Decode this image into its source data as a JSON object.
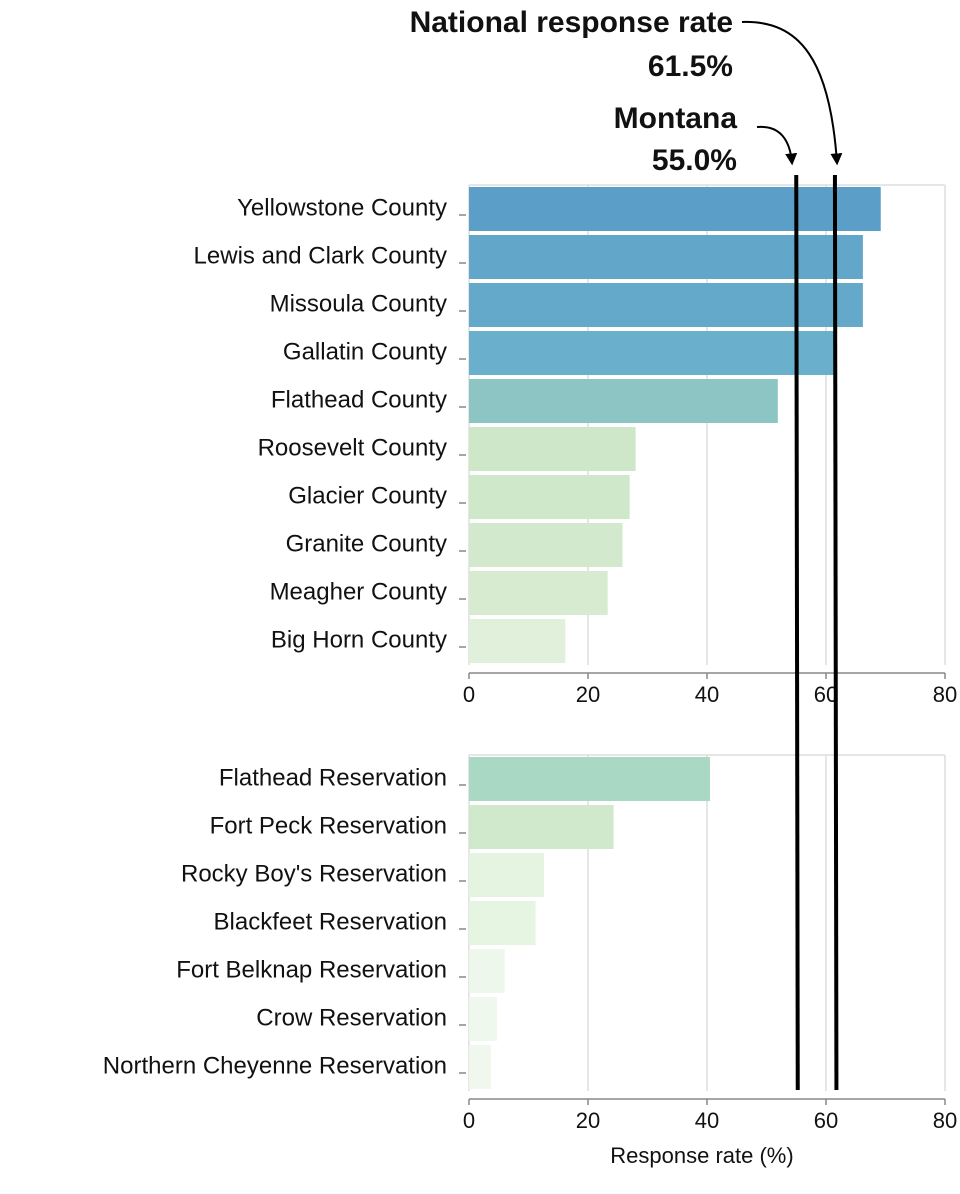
{
  "chart_data": [
    {
      "type": "bar",
      "orientation": "horizontal",
      "categories": [
        "Yellowstone County",
        "Lewis and Clark County",
        "Missoula County",
        "Gallatin County",
        "Flathead County",
        "Roosevelt County",
        "Glacier County",
        "Granite County",
        "Meagher County",
        "Big Horn County"
      ],
      "values": [
        69.2,
        66.2,
        66.2,
        61.3,
        51.9,
        28.0,
        27.0,
        25.8,
        23.3,
        16.2
      ],
      "colors": [
        "#5b9ec7",
        "#62a6c9",
        "#64a8ca",
        "#6aafcc",
        "#8cc5c4",
        "#cfe7c9",
        "#d0e8ca",
        "#d3e9cd",
        "#d6ebcf",
        "#e0f0db"
      ],
      "xlim": [
        0,
        80
      ],
      "xticks": [
        0,
        20,
        40,
        60,
        80
      ],
      "grid": true
    },
    {
      "type": "bar",
      "orientation": "horizontal",
      "categories": [
        "Flathead Reservation",
        "Fort Peck Reservation",
        "Rocky Boy's Reservation",
        "Blackfeet Reservation",
        "Fort Belknap Reservation",
        "Crow Reservation",
        "Northern Cheyenne Reservation"
      ],
      "values": [
        40.5,
        24.3,
        12.6,
        11.2,
        6.0,
        4.7,
        3.7
      ],
      "colors": [
        "#a9d9c4",
        "#d0e8cc",
        "#e5f3e1",
        "#e6f4e2",
        "#eef7eb",
        "#eff8ec",
        "#f0f8ed"
      ],
      "xlim": [
        0,
        80
      ],
      "xticks": [
        0,
        20,
        40,
        60,
        80
      ],
      "grid": true,
      "xlabel": "Response rate (%)"
    }
  ],
  "reference_lines": [
    {
      "name": "National response rate",
      "value": 61.5,
      "value_label": "61.5%",
      "color": "#000000"
    },
    {
      "name": "Montana",
      "value": 55.0,
      "value_label": "55.0%",
      "color": "#000000"
    }
  ]
}
